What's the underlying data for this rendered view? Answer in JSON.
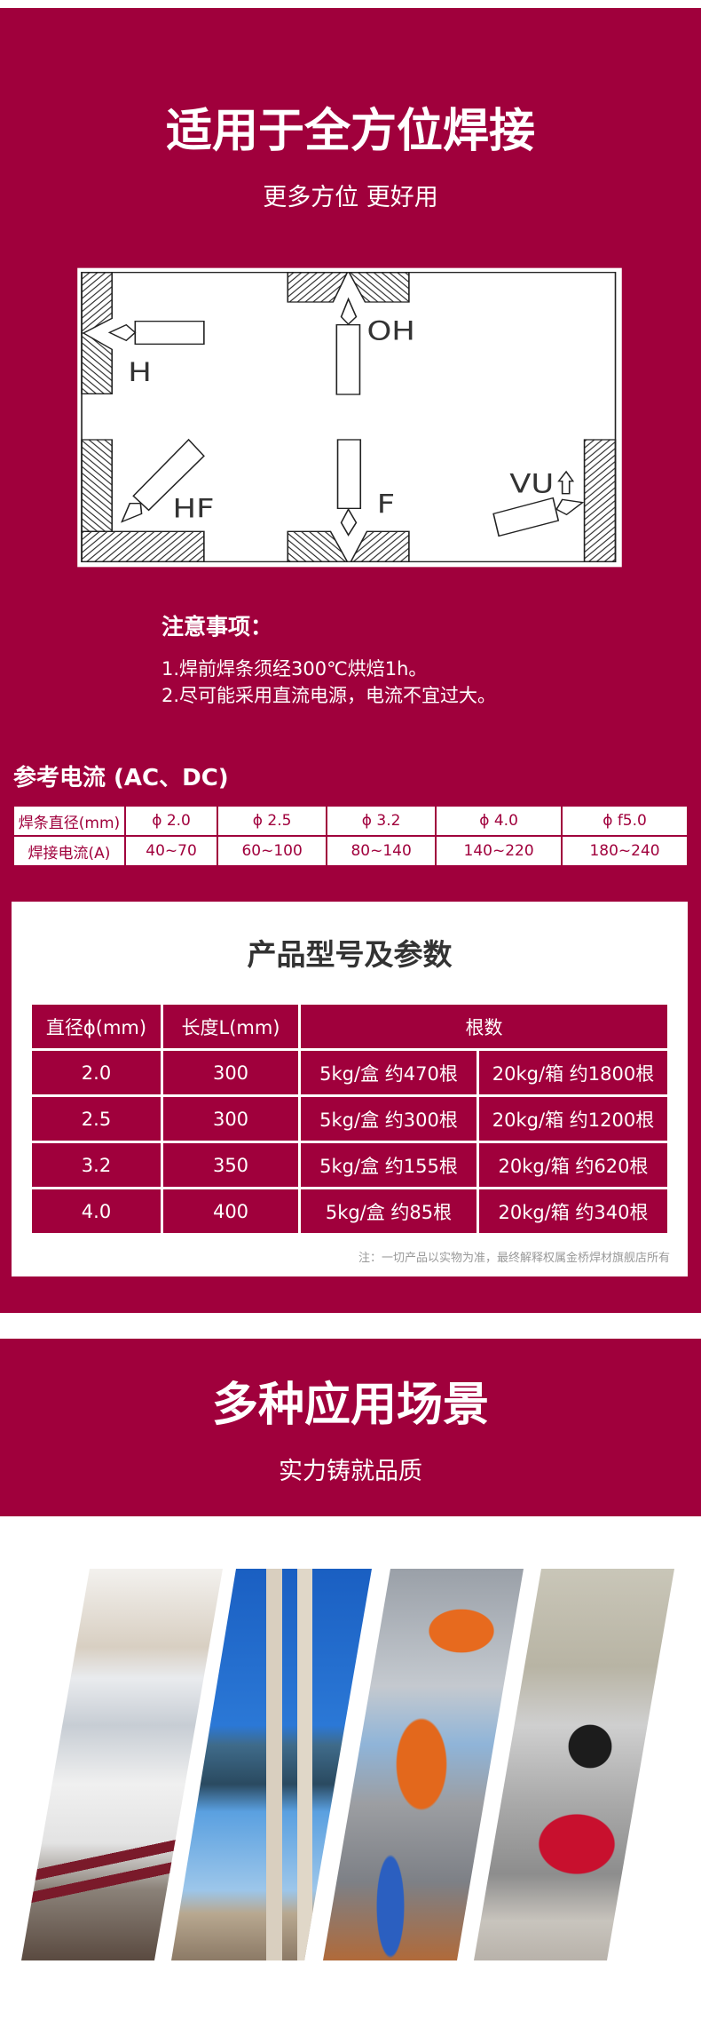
{
  "colors": {
    "brand": "#A0003C",
    "text_dark": "#333333",
    "note_gray": "#999999"
  },
  "hero": {
    "title": "适用于全方位焊接",
    "subtitle": "更多方位 更好用"
  },
  "diagram": {
    "labels": {
      "h": "H",
      "oh": "OH",
      "hf": "HF",
      "f": "F",
      "vu": "VU"
    }
  },
  "notes": {
    "title": "注意事项：",
    "items": [
      "1.焊前焊条须经300℃烘焙1h。",
      "2.尽可能采用直流电源，电流不宜过大。"
    ]
  },
  "current": {
    "title": "参考电流 (AC、DC)",
    "rows": [
      {
        "label": "焊条直径(mm)",
        "values": [
          "ϕ 2.0",
          "ϕ 2.5",
          "ϕ 3.2",
          "ϕ 4.0",
          "ϕ f5.0"
        ]
      },
      {
        "label": "焊接电流(A)",
        "values": [
          "40~70",
          "60~100",
          "80~140",
          "140~220",
          "180~240"
        ]
      }
    ]
  },
  "specs": {
    "title": "产品型号及参数",
    "headers": [
      "直径ϕ(mm)",
      "长度L(mm)",
      "根数"
    ],
    "rows": [
      [
        "2.0",
        "300",
        "5kg/盒 约470根",
        "20kg/箱 约1800根"
      ],
      [
        "2.5",
        "300",
        "5kg/盒 约300根",
        "20kg/箱 约1200根"
      ],
      [
        "3.2",
        "350",
        "5kg/盒 约155根",
        "20kg/箱 约620根"
      ],
      [
        "4.0",
        "400",
        "5kg/盒 约85根",
        "20kg/箱 约340根"
      ]
    ],
    "note": "注：一切产品以实物为准，最终解释权属金桥焊材旗舰店所有"
  },
  "applications": {
    "title": "多种应用场景",
    "subtitle": "实力铸就品质",
    "images": [
      "high-speed-train",
      "cable-stayed-bridge",
      "robotic-welding-line",
      "industrial-boiler"
    ]
  }
}
